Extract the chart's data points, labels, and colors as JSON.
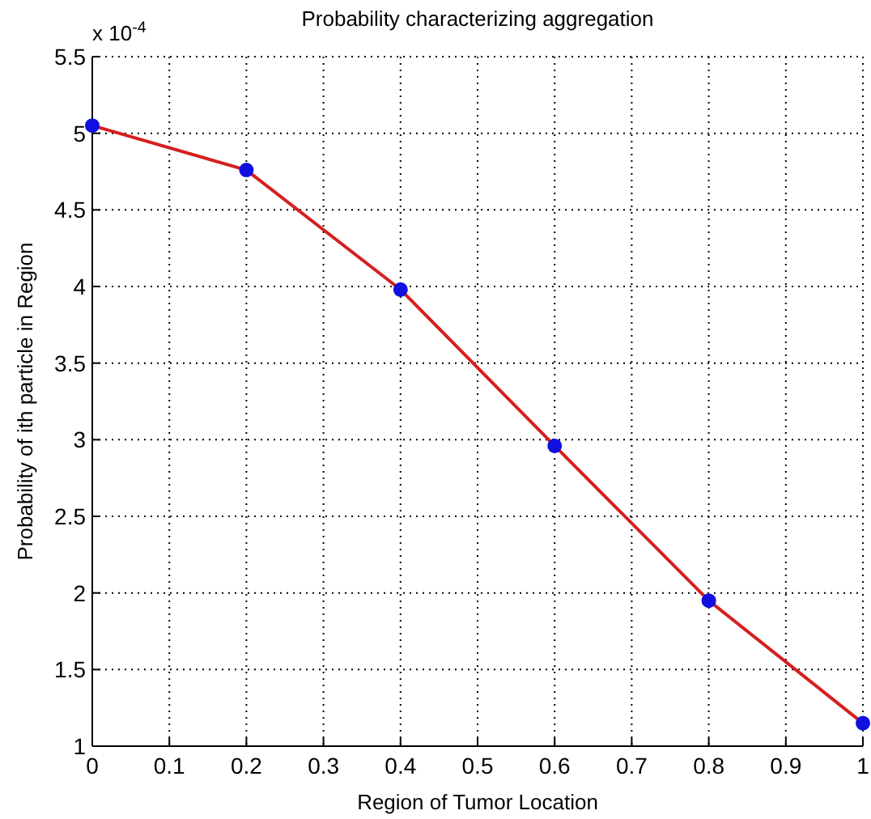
{
  "chart_data": {
    "type": "line",
    "title": "Probability characterizing aggregation",
    "xlabel": "Region of Tumor Location",
    "ylabel": "Probability of ith particle in Region",
    "annotations": [
      "x 10$^{-4}$"
    ],
    "x": [
      0,
      0.2,
      0.4,
      0.6,
      0.8,
      1
    ],
    "series": [
      {
        "color": "#d42020",
        "values": [
          5.05,
          4.76,
          3.98,
          2.96,
          1.95,
          1.15
        ]
      }
    ],
    "marker": "circle",
    "grid": true,
    "xlim": [
      0,
      1
    ],
    "xticks": [
      0,
      0.1,
      0.2,
      0.3,
      0.4,
      0.5,
      0.6,
      0.7,
      0.8,
      0.9,
      1
    ],
    "ylim": [
      1,
      5.5
    ],
    "yticks": [
      1,
      1.5,
      2,
      2.5,
      3,
      3.5,
      4,
      4.5,
      5,
      5.5
    ]
  }
}
